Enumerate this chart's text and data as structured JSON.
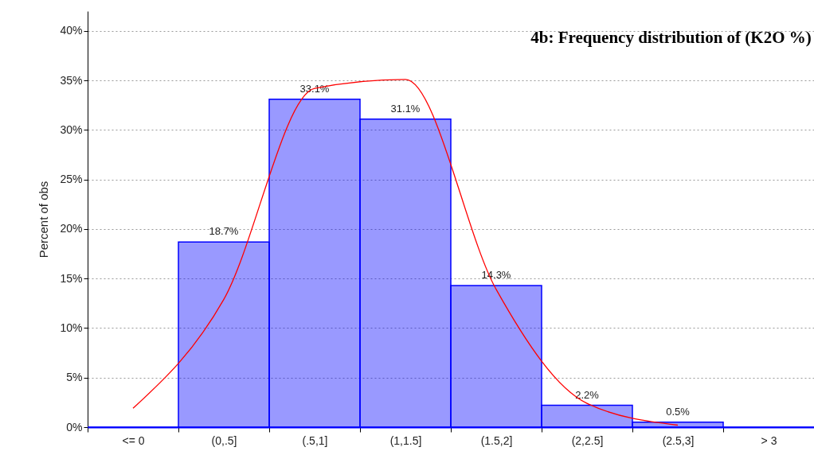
{
  "chart_data": {
    "type": "bar",
    "title": "4b: Frequency distribution of (K2O %)",
    "ylabel": "Percent of obs",
    "categories": [
      "<= 0",
      "(0,.5]",
      "(.5,1]",
      "(1,1.5]",
      "(1.5,2]",
      "(2,2.5]",
      "(2.5,3]",
      "> 3"
    ],
    "series": [
      {
        "color": "#0000ff",
        "values": [
          0,
          18.7,
          33.1,
          31.1,
          14.3,
          2.2,
          0.5,
          0
        ],
        "value_labels": [
          null,
          "18.7%",
          "33.1%",
          "31.1%",
          "14.3%",
          "2.2%",
          "0.5%",
          null
        ]
      },
      {
        "type": "line",
        "color": "#ff0000",
        "values": [
          1.9,
          12.9,
          34.2,
          35.1,
          13.9,
          2.4,
          0.2,
          null
        ]
      }
    ],
    "ylim": [
      0,
      42
    ],
    "yticks": [
      {
        "value": 0,
        "label": "0%"
      },
      {
        "value": 5,
        "label": "5%"
      },
      {
        "value": 10,
        "label": "10%"
      },
      {
        "value": 15,
        "label": "15%"
      },
      {
        "value": 20,
        "label": "20%"
      },
      {
        "value": 25,
        "label": "25%"
      },
      {
        "value": 30,
        "label": "30%"
      },
      {
        "value": 35,
        "label": "35%"
      },
      {
        "value": 40,
        "label": "40%"
      }
    ],
    "grid": "y"
  }
}
